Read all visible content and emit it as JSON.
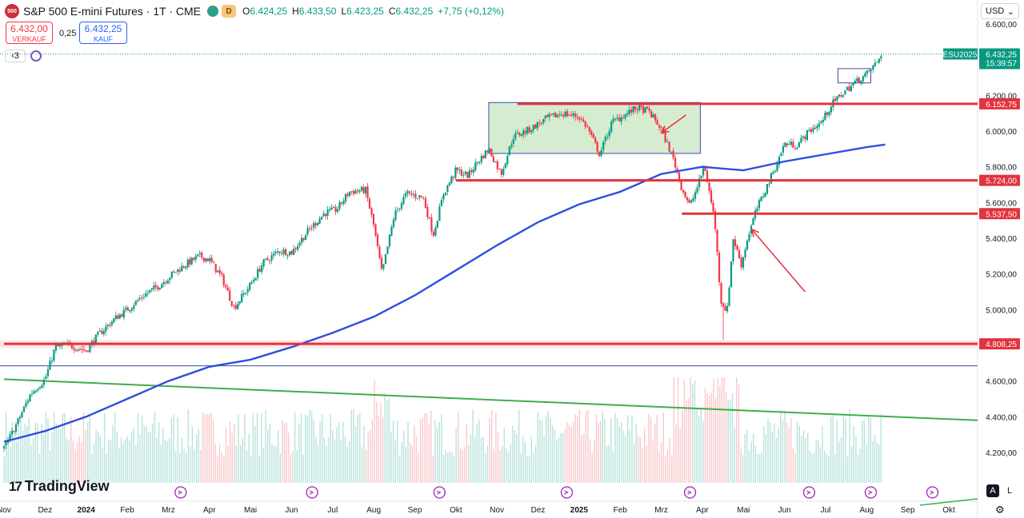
{
  "header": {
    "symbol_logo": "500",
    "title": "S&P 500 E-mini Futures · 1T · CME",
    "ohlc": {
      "open_label": "O",
      "open": "6.424,25",
      "high_label": "H",
      "high": "6.433,50",
      "low_label": "L",
      "low": "6.423,25",
      "close_label": "C",
      "close": "6.432,25",
      "change": "+7,75 (+0,12%)"
    },
    "delay_badge": "D",
    "sell_price": "6.432,00",
    "sell_label": "VERKAUF",
    "spread": "0,25",
    "buy_price": "6.432,25",
    "buy_label": "KAUF",
    "indicator_count": "3",
    "currency": "USD",
    "brand": "TradingView",
    "scale_auto": "A",
    "scale_log": "L"
  },
  "colors": {
    "up": "#089981",
    "down": "#f23645",
    "ma": "#2e4fdd",
    "support": "#e2333e",
    "trend": "#3fae49",
    "box_fill": "#c8e6c0",
    "box_border": "#3b4da6",
    "volume_up": "#b9e3dc",
    "volume_down": "#f9c9cc"
  },
  "chart_data": {
    "type": "candlestick",
    "instrument": "ESU2025",
    "price_label": "6.432,25",
    "countdown": "15:39:57",
    "ylim": [
      4100,
      6640
    ],
    "y_ticks": [
      {
        "v": 4200,
        "label": "4.200,00"
      },
      {
        "v": 4400,
        "label": "4.400,00"
      },
      {
        "v": 4600,
        "label": "4.600,00"
      },
      {
        "v": 4800,
        "label": ""
      },
      {
        "v": 5000,
        "label": "5.000,00"
      },
      {
        "v": 5200,
        "label": "5.200,00"
      },
      {
        "v": 5400,
        "label": "5.400,00"
      },
      {
        "v": 5600,
        "label": "5.600,00"
      },
      {
        "v": 5800,
        "label": "5.800,00"
      },
      {
        "v": 6000,
        "label": "6.000,00"
      },
      {
        "v": 6200,
        "label": "6.200,00"
      },
      {
        "v": 6600,
        "label": "6.600,00"
      }
    ],
    "x_ticks": [
      {
        "t": 0,
        "label": "Nov",
        "bold": false
      },
      {
        "t": 1,
        "label": "Dez",
        "bold": false
      },
      {
        "t": 2,
        "label": "2024",
        "bold": true
      },
      {
        "t": 3,
        "label": "Feb",
        "bold": false
      },
      {
        "t": 4,
        "label": "Mrz",
        "bold": false
      },
      {
        "t": 5,
        "label": "Apr",
        "bold": false
      },
      {
        "t": 6,
        "label": "Mai",
        "bold": false
      },
      {
        "t": 7,
        "label": "Jun",
        "bold": false
      },
      {
        "t": 8,
        "label": "Jul",
        "bold": false
      },
      {
        "t": 9,
        "label": "Aug",
        "bold": false
      },
      {
        "t": 10,
        "label": "Sep",
        "bold": false
      },
      {
        "t": 11,
        "label": "Okt",
        "bold": false
      },
      {
        "t": 12,
        "label": "Nov",
        "bold": false
      },
      {
        "t": 13,
        "label": "Dez",
        "bold": false
      },
      {
        "t": 14,
        "label": "2025",
        "bold": true
      },
      {
        "t": 15,
        "label": "Feb",
        "bold": false
      },
      {
        "t": 16,
        "label": "Mrz",
        "bold": false
      },
      {
        "t": 17,
        "label": "Apr",
        "bold": false
      },
      {
        "t": 18,
        "label": "Mai",
        "bold": false
      },
      {
        "t": 19,
        "label": "Jun",
        "bold": false
      },
      {
        "t": 20,
        "label": "Jul",
        "bold": false
      },
      {
        "t": 21,
        "label": "Aug",
        "bold": false
      },
      {
        "t": 22,
        "label": "Sep",
        "bold": false
      },
      {
        "t": 23,
        "label": "Okt",
        "bold": false
      }
    ],
    "x_range": [
      0,
      23.7
    ],
    "price_path": [
      [
        0.0,
        4220
      ],
      [
        0.35,
        4380
      ],
      [
        0.65,
        4530
      ],
      [
        1.0,
        4610
      ],
      [
        1.25,
        4790
      ],
      [
        1.6,
        4800
      ],
      [
        2.0,
        4770
      ],
      [
        2.3,
        4860
      ],
      [
        2.7,
        4950
      ],
      [
        3.0,
        5000
      ],
      [
        3.4,
        5080
      ],
      [
        3.8,
        5140
      ],
      [
        4.1,
        5200
      ],
      [
        4.4,
        5250
      ],
      [
        4.75,
        5300
      ],
      [
        5.0,
        5280
      ],
      [
        5.3,
        5180
      ],
      [
        5.6,
        5010
      ],
      [
        6.0,
        5140
      ],
      [
        6.3,
        5260
      ],
      [
        6.7,
        5330
      ],
      [
        7.0,
        5320
      ],
      [
        7.4,
        5440
      ],
      [
        7.8,
        5540
      ],
      [
        8.1,
        5560
      ],
      [
        8.4,
        5660
      ],
      [
        8.8,
        5670
      ],
      [
        9.0,
        5470
      ],
      [
        9.2,
        5200
      ],
      [
        9.5,
        5530
      ],
      [
        9.8,
        5650
      ],
      [
        10.2,
        5630
      ],
      [
        10.45,
        5420
      ],
      [
        10.7,
        5650
      ],
      [
        11.0,
        5780
      ],
      [
        11.3,
        5750
      ],
      [
        11.5,
        5820
      ],
      [
        11.8,
        5900
      ],
      [
        12.1,
        5760
      ],
      [
        12.4,
        5970
      ],
      [
        12.8,
        6010
      ],
      [
        13.2,
        6070
      ],
      [
        13.6,
        6100
      ],
      [
        14.0,
        6080
      ],
      [
        14.2,
        6020
      ],
      [
        14.5,
        5870
      ],
      [
        14.8,
        6050
      ],
      [
        15.1,
        6090
      ],
      [
        15.4,
        6130
      ],
      [
        15.7,
        6110
      ],
      [
        16.0,
        6010
      ],
      [
        16.3,
        5840
      ],
      [
        16.5,
        5680
      ],
      [
        16.7,
        5580
      ],
      [
        16.9,
        5700
      ],
      [
        17.05,
        5810
      ],
      [
        17.2,
        5620
      ],
      [
        17.3,
        5500
      ],
      [
        17.45,
        5050
      ],
      [
        17.6,
        4990
      ],
      [
        17.75,
        5400
      ],
      [
        17.95,
        5250
      ],
      [
        18.1,
        5400
      ],
      [
        18.3,
        5550
      ],
      [
        18.55,
        5680
      ],
      [
        18.8,
        5810
      ],
      [
        19.0,
        5930
      ],
      [
        19.3,
        5920
      ],
      [
        19.6,
        6000
      ],
      [
        19.9,
        6050
      ],
      [
        20.15,
        6150
      ],
      [
        20.4,
        6210
      ],
      [
        20.7,
        6270
      ],
      [
        21.0,
        6320
      ],
      [
        21.25,
        6385
      ],
      [
        21.35,
        6432
      ]
    ],
    "spike_low": {
      "t": 17.5,
      "v": 4830
    },
    "ma_path": [
      [
        0.0,
        4260
      ],
      [
        1.0,
        4320
      ],
      [
        2.0,
        4400
      ],
      [
        3.0,
        4500
      ],
      [
        4.0,
        4600
      ],
      [
        5.0,
        4680
      ],
      [
        6.0,
        4720
      ],
      [
        7.0,
        4790
      ],
      [
        8.0,
        4870
      ],
      [
        9.0,
        4960
      ],
      [
        10.0,
        5080
      ],
      [
        11.0,
        5220
      ],
      [
        12.0,
        5360
      ],
      [
        13.0,
        5490
      ],
      [
        14.0,
        5590
      ],
      [
        15.0,
        5660
      ],
      [
        16.0,
        5760
      ],
      [
        17.0,
        5800
      ],
      [
        18.0,
        5780
      ],
      [
        19.0,
        5830
      ],
      [
        20.0,
        5870
      ],
      [
        21.0,
        5910
      ],
      [
        21.45,
        5925
      ]
    ],
    "trend_line": [
      [
        0.0,
        4610
      ],
      [
        23.7,
        4380
      ]
    ],
    "horizontal_levels": [
      {
        "t0": 12.5,
        "v": 6152.75,
        "label": "6.152,75"
      },
      {
        "t0": 11.0,
        "v": 5724.0,
        "label": "5.724,00"
      },
      {
        "t0": 16.5,
        "v": 5537.5,
        "label": "5.537,50"
      },
      {
        "t0": 0.0,
        "v": 4808.25,
        "label": "4.808,25",
        "zone": [
          4785,
          4830
        ]
      }
    ],
    "thin_level": {
      "v": 4685
    },
    "range_box": {
      "t0": 11.8,
      "t1": 16.95,
      "v0": 5875,
      "v1": 6160
    },
    "small_box": {
      "t0": 20.3,
      "t1": 21.1,
      "v0": 6270,
      "v1": 6350
    },
    "arrows": [
      {
        "from": [
          16.6,
          6090
        ],
        "to": [
          16.0,
          5990
        ]
      },
      {
        "from": [
          19.5,
          5100
        ],
        "to": [
          18.2,
          5450
        ]
      }
    ],
    "event_markers": [
      4.3,
      7.5,
      10.6,
      13.7,
      16.7,
      19.6,
      21.1,
      22.6
    ]
  }
}
